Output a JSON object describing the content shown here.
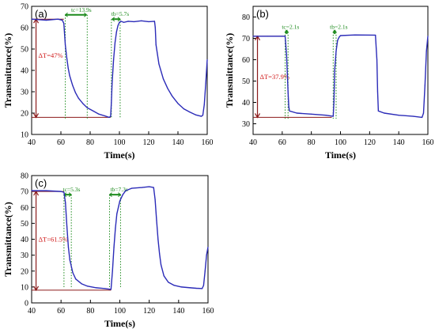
{
  "chart_data": [
    {
      "type": "line",
      "panel_label": "(a)",
      "xlabel": "Time(s)",
      "ylabel": "Transmittance(%)",
      "xlim": [
        40,
        160
      ],
      "ylim": [
        10,
        70
      ],
      "xticks": [
        "40",
        "60",
        "80",
        "100",
        "120",
        "140",
        "160"
      ],
      "yticks": [
        "10",
        "20",
        "30",
        "40",
        "50",
        "60",
        "70"
      ],
      "grid": false,
      "series": [
        {
          "color": "#2b2bb8",
          "x": [
            40,
            50,
            58,
            61,
            62,
            63,
            64,
            65,
            66,
            68,
            70,
            72,
            75,
            78,
            82,
            86,
            90,
            93,
            94,
            94.5,
            95,
            96,
            97,
            98,
            99,
            100,
            101,
            103,
            106,
            110,
            115,
            120,
            124,
            124.5,
            125,
            127,
            130,
            133,
            136,
            140,
            144,
            148,
            152,
            156,
            157,
            158,
            159,
            160
          ],
          "y": [
            64,
            63.5,
            64,
            63.5,
            62,
            52,
            46,
            41,
            37.5,
            33,
            29.5,
            27,
            24.5,
            22.5,
            21,
            19.5,
            18.7,
            18,
            18.5,
            25,
            34,
            45,
            53,
            58,
            61,
            62.5,
            63,
            62.5,
            63,
            62.8,
            63.2,
            62.8,
            63,
            60,
            52,
            43,
            36,
            31.5,
            28,
            24.5,
            22,
            20.5,
            19.2,
            18.5,
            19,
            24,
            34,
            45
          ]
        }
      ],
      "annotations": [
        "tc=13.9s",
        "tb=5.7s",
        "ΔT=47%"
      ]
    },
    {
      "type": "line",
      "panel_label": "(b)",
      "xlabel": "Time(s)",
      "ylabel": "Transmittance(%)",
      "xlim": [
        40,
        160
      ],
      "ylim": [
        25,
        85
      ],
      "xticks": [
        "40",
        "60",
        "80",
        "100",
        "120",
        "140",
        "160"
      ],
      "yticks": [
        "30",
        "40",
        "50",
        "60",
        "70",
        "80"
      ],
      "grid": false,
      "series": [
        {
          "color": "#2b2bb8",
          "x": [
            40,
            50,
            60,
            62,
            63,
            64,
            64.5,
            65,
            70,
            80,
            90,
            95,
            95.5,
            96,
            97,
            98,
            99,
            100,
            110,
            124,
            125,
            125.5,
            126,
            130,
            140,
            150,
            156,
            157,
            158,
            159,
            160
          ],
          "y": [
            71,
            71,
            71,
            71,
            62,
            45,
            38,
            36,
            35,
            34.5,
            34,
            33.5,
            40,
            55,
            64,
            69,
            70.5,
            71.3,
            71.6,
            71.5,
            60,
            45,
            36,
            35,
            34,
            33.5,
            33,
            35,
            48,
            64,
            71
          ]
        }
      ],
      "annotations": [
        "tc=2.1s",
        "tb=2.1s",
        "ΔT=37.9%"
      ]
    },
    {
      "type": "line",
      "panel_label": "(c)",
      "xlabel": "Time(s)",
      "ylabel": "Transmittance(%)",
      "xlim": [
        40,
        160
      ],
      "ylim": [
        0,
        80
      ],
      "xticks": [
        "40",
        "60",
        "80",
        "100",
        "120",
        "140",
        "160"
      ],
      "yticks": [
        "0",
        "10",
        "20",
        "30",
        "40",
        "50",
        "60",
        "70",
        "80"
      ],
      "grid": false,
      "series": [
        {
          "color": "#2b2bb8",
          "x": [
            40,
            50,
            60,
            62,
            63,
            64,
            65,
            66,
            68,
            70,
            74,
            78,
            84,
            90,
            94,
            95,
            96,
            97,
            98,
            100,
            102,
            104,
            108,
            115,
            120,
            123,
            124,
            125,
            126,
            127,
            128,
            130,
            133,
            137,
            142,
            148,
            152,
            156,
            157,
            158,
            159,
            160
          ],
          "y": [
            70.5,
            70.5,
            70,
            69.5,
            63,
            48,
            35,
            27,
            19,
            15,
            12,
            10.5,
            9.5,
            9,
            8.5,
            20,
            35,
            47,
            56,
            64,
            68,
            70.5,
            72,
            72.5,
            73,
            72.5,
            65,
            52,
            40,
            31,
            24,
            17,
            13,
            11,
            10,
            9.5,
            9.2,
            9,
            11,
            20,
            30,
            35
          ]
        }
      ],
      "annotations": [
        "tc=5.3s",
        "tb=7.3s",
        "ΔT=61.5%"
      ]
    }
  ]
}
